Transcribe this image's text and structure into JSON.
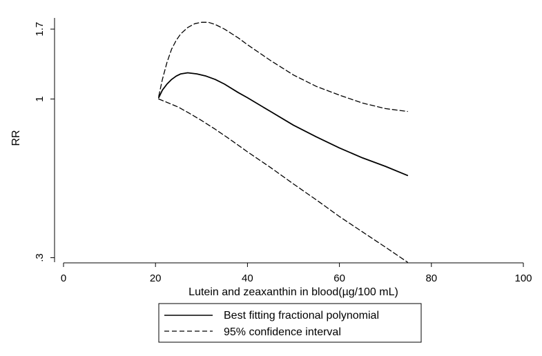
{
  "chart_data": {
    "type": "line",
    "title": "",
    "xlabel": "Lutein and zeaxanthin in blood(µg/100 mL)",
    "ylabel": "RR",
    "xlim": [
      0,
      100
    ],
    "ylim": [
      0.29,
      1.85
    ],
    "y_scale": "log",
    "x_ticks": [
      0,
      20,
      40,
      60,
      80,
      100
    ],
    "x_tick_labels": [
      "0",
      "20",
      "40",
      "60",
      "80",
      "100"
    ],
    "y_ticks": [
      0.3,
      1,
      1.7
    ],
    "y_tick_labels": [
      ".3",
      "1",
      "1.7"
    ],
    "grid": false,
    "legend_position": "bottom",
    "series": [
      {
        "name": "Best fitting fractional polynomial",
        "style": "solid",
        "x": [
          20.7,
          21.5,
          22.5,
          23.5,
          24.5,
          25.5,
          27,
          29,
          31,
          33,
          35,
          38,
          40,
          45,
          50,
          55,
          60,
          65,
          70,
          74.8
        ],
        "y": [
          1.01,
          1.07,
          1.12,
          1.16,
          1.19,
          1.21,
          1.22,
          1.21,
          1.19,
          1.16,
          1.12,
          1.05,
          1.01,
          0.91,
          0.82,
          0.75,
          0.69,
          0.64,
          0.6,
          0.56
        ]
      },
      {
        "name": "95% confidence interval",
        "style": "dashed",
        "x": [
          20.7,
          21.5,
          22.5,
          23.5,
          24.5,
          25.5,
          27,
          28.5,
          30,
          31.5,
          33,
          35,
          38,
          40,
          45,
          50,
          55,
          60,
          65,
          70,
          74.8
        ],
        "y": [
          1.02,
          1.16,
          1.32,
          1.46,
          1.56,
          1.64,
          1.72,
          1.77,
          1.79,
          1.79,
          1.76,
          1.7,
          1.59,
          1.51,
          1.34,
          1.2,
          1.1,
          1.03,
          0.97,
          0.93,
          0.91
        ]
      },
      {
        "name": "",
        "style": "dashed",
        "x": [
          20.7,
          22.5,
          25,
          27.5,
          30,
          33,
          36,
          40,
          45,
          50,
          55,
          60,
          65,
          70,
          74.8
        ],
        "y": [
          1.0,
          0.975,
          0.94,
          0.895,
          0.85,
          0.795,
          0.74,
          0.67,
          0.595,
          0.525,
          0.465,
          0.41,
          0.365,
          0.325,
          0.29
        ]
      }
    ]
  }
}
